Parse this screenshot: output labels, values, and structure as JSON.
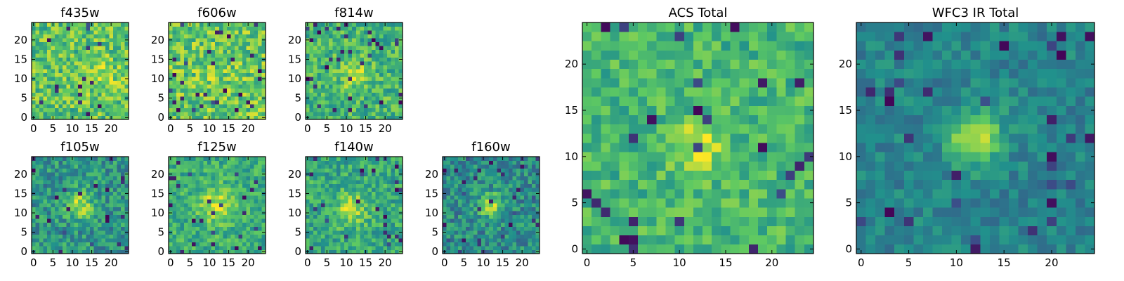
{
  "figure": {
    "colormap": "viridis",
    "colormap_stops": [
      "#440154",
      "#3b528b",
      "#21918c",
      "#5ec962",
      "#fde725"
    ]
  },
  "chart_data": [
    {
      "type": "heatmap",
      "id": "f435w",
      "title": "f435w",
      "grid": [
        25,
        25
      ],
      "xlim": [
        -0.5,
        24.5
      ],
      "ylim": [
        -0.5,
        24.5
      ],
      "xticks": [
        0,
        5,
        10,
        15,
        20
      ],
      "yticks": [
        0,
        5,
        10,
        15,
        20
      ],
      "source": {
        "center": [
          17,
          11
        ],
        "sigma": 3.0,
        "amp": 0.15,
        "base": 0.72,
        "noise": 0.42,
        "dark_frac": 0.03,
        "seed": 11
      }
    },
    {
      "type": "heatmap",
      "id": "f606w",
      "title": "f606w",
      "grid": [
        25,
        25
      ],
      "xlim": [
        -0.5,
        24.5
      ],
      "ylim": [
        -0.5,
        24.5
      ],
      "xticks": [
        0,
        5,
        10,
        15,
        20
      ],
      "yticks": [
        0,
        5,
        10,
        15,
        20
      ],
      "source": {
        "center": [
          12,
          12
        ],
        "sigma": 3.0,
        "amp": 0.05,
        "base": 0.74,
        "noise": 0.42,
        "dark_frac": 0.04,
        "seed": 22
      }
    },
    {
      "type": "heatmap",
      "id": "f814w",
      "title": "f814w",
      "grid": [
        25,
        25
      ],
      "xlim": [
        -0.5,
        24.5
      ],
      "ylim": [
        -0.5,
        24.5
      ],
      "xticks": [
        0,
        5,
        10,
        15,
        20
      ],
      "yticks": [
        0,
        5,
        10,
        15,
        20
      ],
      "source": {
        "center": [
          12,
          11
        ],
        "sigma": 2.2,
        "amp": 0.3,
        "base": 0.66,
        "noise": 0.38,
        "dark_frac": 0.04,
        "seed": 33
      }
    },
    {
      "type": "heatmap",
      "id": "f105w",
      "title": "f105w",
      "grid": [
        25,
        25
      ],
      "xlim": [
        -0.5,
        24.5
      ],
      "ylim": [
        -0.5,
        24.5
      ],
      "xticks": [
        0,
        5,
        10,
        15,
        20
      ],
      "yticks": [
        0,
        5,
        10,
        15,
        20
      ],
      "source": {
        "center": [
          12,
          12
        ],
        "sigma": 2.5,
        "amp": 0.35,
        "base": 0.52,
        "noise": 0.38,
        "dark_frac": 0.05,
        "seed": 44
      }
    },
    {
      "type": "heatmap",
      "id": "f125w",
      "title": "f125w",
      "grid": [
        25,
        25
      ],
      "xlim": [
        -0.5,
        24.5
      ],
      "ylim": [
        -0.5,
        24.5
      ],
      "xticks": [
        0,
        5,
        10,
        15,
        20
      ],
      "yticks": [
        0,
        5,
        10,
        15,
        20
      ],
      "source": {
        "center": [
          12,
          12
        ],
        "sigma": 3.5,
        "amp": 0.28,
        "base": 0.62,
        "noise": 0.32,
        "dark_frac": 0.04,
        "seed": 55
      }
    },
    {
      "type": "heatmap",
      "id": "f140w",
      "title": "f140w",
      "grid": [
        25,
        25
      ],
      "xlim": [
        -0.5,
        24.5
      ],
      "ylim": [
        -0.5,
        24.5
      ],
      "xticks": [
        0,
        5,
        10,
        15,
        20
      ],
      "yticks": [
        0,
        5,
        10,
        15,
        20
      ],
      "source": {
        "center": [
          11,
          11
        ],
        "sigma": 3.0,
        "amp": 0.28,
        "base": 0.6,
        "noise": 0.35,
        "dark_frac": 0.04,
        "seed": 66
      }
    },
    {
      "type": "heatmap",
      "id": "f160w",
      "title": "f160w",
      "grid": [
        25,
        25
      ],
      "xlim": [
        -0.5,
        24.5
      ],
      "ylim": [
        -0.5,
        24.5
      ],
      "xticks": [
        0,
        5,
        10,
        15,
        20
      ],
      "yticks": [
        0,
        5,
        10,
        15,
        20
      ],
      "source": {
        "center": [
          12,
          12
        ],
        "sigma": 2.2,
        "amp": 0.4,
        "base": 0.48,
        "noise": 0.36,
        "dark_frac": 0.06,
        "seed": 77
      }
    },
    {
      "type": "heatmap",
      "id": "acs-total",
      "title": "ACS Total",
      "grid": [
        25,
        25
      ],
      "xlim": [
        -0.5,
        24.5
      ],
      "ylim": [
        -0.5,
        24.5
      ],
      "xticks": [
        0,
        5,
        10,
        15,
        20
      ],
      "yticks": [
        0,
        5,
        10,
        15,
        20
      ],
      "source": {
        "center": [
          12,
          11
        ],
        "sigma": 2.0,
        "amp": 0.3,
        "base": 0.66,
        "noise": 0.3,
        "dark_frac": 0.04,
        "seed": 88
      }
    },
    {
      "type": "heatmap",
      "id": "wfc3-ir-total",
      "title": "WFC3 IR Total",
      "grid": [
        25,
        25
      ],
      "xlim": [
        -0.5,
        24.5
      ],
      "ylim": [
        -0.5,
        24.5
      ],
      "xticks": [
        0,
        5,
        10,
        15,
        20
      ],
      "yticks": [
        0,
        5,
        10,
        15,
        20
      ],
      "source": {
        "center": [
          12,
          12
        ],
        "sigma": 2.0,
        "amp": 0.45,
        "base": 0.45,
        "noise": 0.22,
        "dark_frac": 0.05,
        "seed": 99
      }
    }
  ]
}
